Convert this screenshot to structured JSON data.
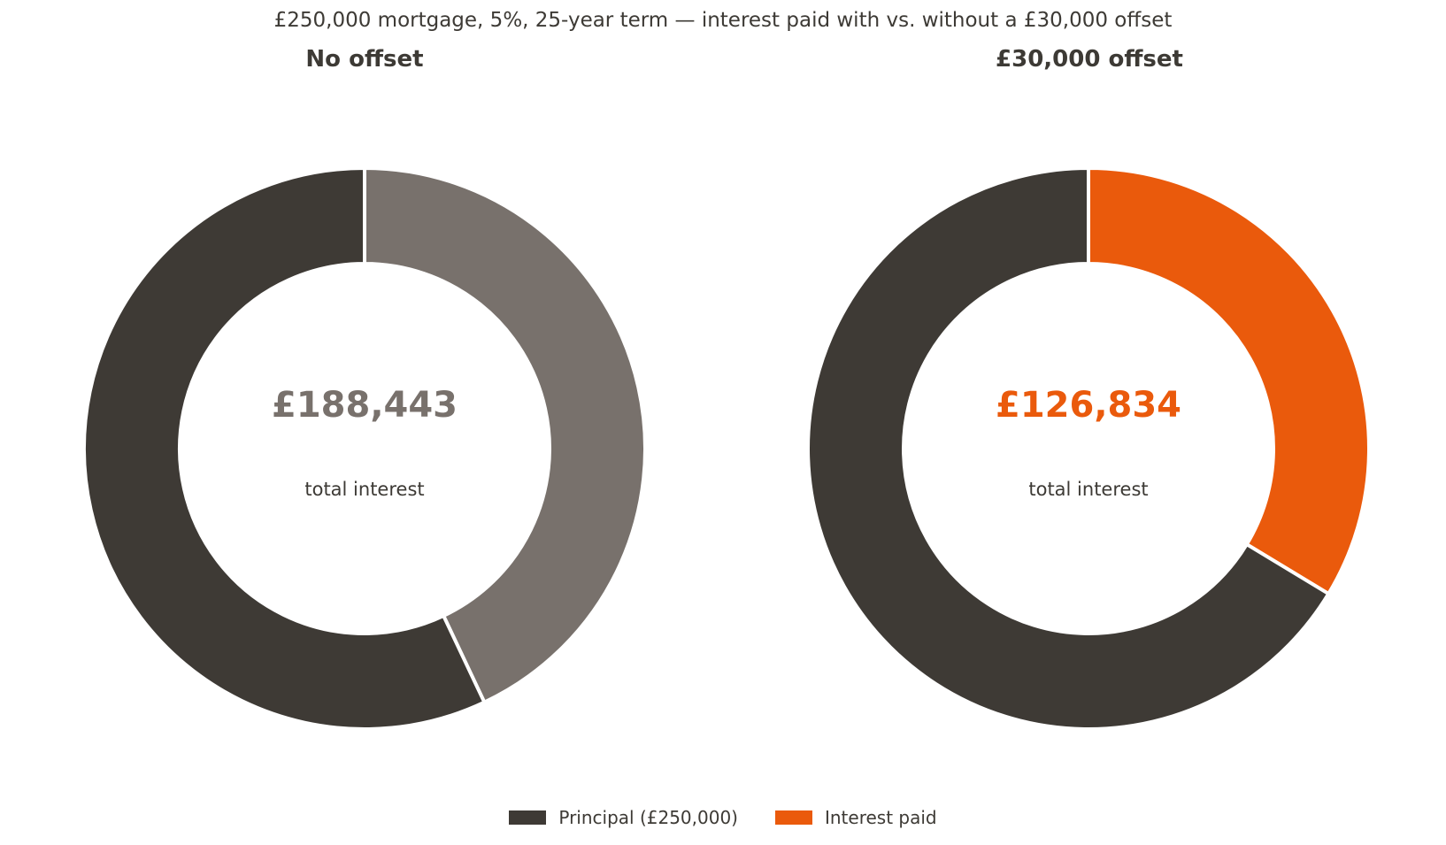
{
  "chart_data": {
    "type": "pie",
    "title": "£250,000 mortgage, 5%, 25-year term — interest paid with vs. without a £30,000 offset",
    "legend_placement": "bottom-center",
    "legend": [
      {
        "label": "Principal (£250,000)",
        "color": "#3e3a35"
      },
      {
        "label": "Interest paid",
        "color": "#ea5a0c"
      }
    ],
    "charts": [
      {
        "title": "No offset",
        "center_value": "£188,443",
        "center_label": "total interest",
        "accent_color": "#78716c",
        "slices": [
          {
            "name": "Interest paid",
            "value": 188443,
            "color": "#78716c"
          },
          {
            "name": "Principal",
            "value": 250000,
            "color": "#3e3a35"
          }
        ]
      },
      {
        "title": "£30,000 offset",
        "center_value": "£126,834",
        "center_label": "total interest",
        "accent_color": "#ea5a0c",
        "slices": [
          {
            "name": "Interest paid",
            "value": 126834,
            "color": "#ea5a0c"
          },
          {
            "name": "Principal",
            "value": 250000,
            "color": "#3e3a35"
          }
        ]
      }
    ]
  }
}
